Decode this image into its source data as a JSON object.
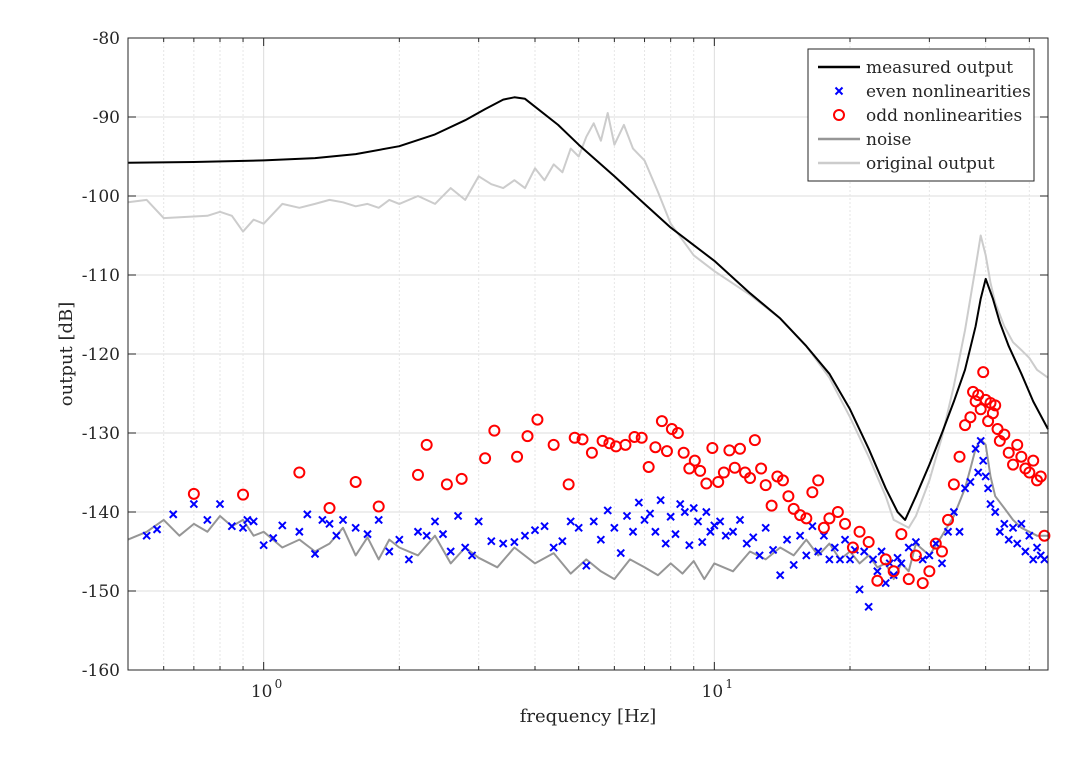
{
  "chart_data": {
    "type": "line",
    "title": "",
    "xlabel": "frequency [Hz]",
    "ylabel": "output [dB]",
    "xscale": "log",
    "xlim": [
      0.5,
      55
    ],
    "ylim": [
      -160,
      -80
    ],
    "yticks": [
      -80,
      -90,
      -100,
      -110,
      -120,
      -130,
      -140,
      -150,
      -160
    ],
    "yticklabels": [
      "-80",
      "-90",
      "-100",
      "-110",
      "-120",
      "-130",
      "-140",
      "-150",
      "-160"
    ],
    "xticks": [
      {
        "value": 1,
        "base": "10",
        "exp": "0"
      },
      {
        "value": 10,
        "base": "10",
        "exp": "1"
      }
    ],
    "grid": true,
    "minor_grid_x": true,
    "legend_location": "top-right",
    "colors": {
      "measured": "#000000",
      "even": "#0000ff",
      "odd": "#ff0000",
      "noise": "#969696",
      "original": "#cccccc"
    },
    "series": [
      {
        "name": "measured output",
        "style": "line",
        "x": [
          0.5,
          0.7,
          1.0,
          1.3,
          1.6,
          2.0,
          2.4,
          2.8,
          3.1,
          3.4,
          3.6,
          3.8,
          4.0,
          4.5,
          5.0,
          6.0,
          7.0,
          8.0,
          10.0,
          12.0,
          14.0,
          16.0,
          18.0,
          20.0,
          22.0,
          24.0,
          25.5,
          26.5,
          28.0,
          30.0,
          32.0,
          34.0,
          36.0,
          38.0,
          39.0,
          40.0,
          41.5,
          43.0,
          45.0,
          48.0,
          51.0,
          55.0
        ],
        "y": [
          -95.8,
          -95.7,
          -95.5,
          -95.2,
          -94.7,
          -93.7,
          -92.2,
          -90.4,
          -89.0,
          -87.8,
          -87.5,
          -87.7,
          -88.7,
          -91.0,
          -93.5,
          -97.5,
          -101.0,
          -104.0,
          -108.2,
          -112.3,
          -115.5,
          -119.0,
          -122.5,
          -127.0,
          -132.0,
          -137.0,
          -140.0,
          -141.0,
          -138.0,
          -134.0,
          -130.0,
          -126.0,
          -122.0,
          -116.5,
          -113.0,
          -110.5,
          -113.0,
          -116.0,
          -119.0,
          -122.5,
          -126.0,
          -129.5
        ]
      },
      {
        "name": "even nonlinearities",
        "style": "x-marker",
        "x": [
          0.55,
          0.58,
          0.63,
          0.7,
          0.75,
          0.8,
          0.85,
          0.9,
          0.92,
          0.95,
          1.0,
          1.05,
          1.1,
          1.2,
          1.25,
          1.3,
          1.35,
          1.4,
          1.45,
          1.5,
          1.6,
          1.7,
          1.8,
          1.9,
          2.0,
          2.1,
          2.2,
          2.3,
          2.4,
          2.5,
          2.6,
          2.7,
          2.8,
          2.9,
          3.0,
          3.2,
          3.4,
          3.6,
          3.8,
          4.0,
          4.2,
          4.4,
          4.6,
          4.8,
          5.0,
          5.2,
          5.4,
          5.6,
          5.8,
          6.0,
          6.2,
          6.4,
          6.6,
          6.8,
          7.0,
          7.2,
          7.4,
          7.6,
          7.8,
          8.0,
          8.2,
          8.4,
          8.6,
          8.8,
          9.0,
          9.2,
          9.4,
          9.6,
          9.8,
          10.0,
          10.3,
          10.6,
          11.0,
          11.4,
          11.8,
          12.2,
          12.6,
          13.0,
          13.5,
          14.0,
          14.5,
          15.0,
          15.5,
          16.0,
          16.5,
          17.0,
          17.5,
          18.0,
          18.5,
          19.0,
          19.5,
          20.0,
          20.5,
          21.0,
          21.5,
          22.0,
          22.5,
          23.0,
          23.5,
          24.0,
          24.5,
          25.0,
          25.5,
          26.0,
          27.0,
          28.0,
          29.0,
          30.0,
          31.0,
          32.0,
          33.0,
          34.0,
          35.0,
          36.0,
          37.0,
          38.0,
          38.5,
          39.0,
          39.5,
          40.0,
          40.5,
          41.0,
          42.0,
          43.0,
          44.0,
          45.0,
          46.0,
          47.0,
          48.0,
          49.0,
          50.0,
          51.0,
          52.0,
          53.0,
          54.0
        ],
        "y": [
          -143.0,
          -142.2,
          -140.3,
          -139.0,
          -141.0,
          -139.0,
          -141.8,
          -142.0,
          -141.0,
          -141.2,
          -144.2,
          -143.3,
          -141.7,
          -142.5,
          -140.3,
          -145.3,
          -141.0,
          -141.5,
          -143.0,
          -141.0,
          -142.0,
          -142.8,
          -141.0,
          -145.0,
          -143.5,
          -146.0,
          -142.5,
          -143.0,
          -141.2,
          -142.8,
          -145.0,
          -140.5,
          -144.5,
          -145.5,
          -141.2,
          -143.7,
          -144.0,
          -143.8,
          -143.0,
          -142.3,
          -141.8,
          -144.5,
          -143.7,
          -141.2,
          -142.0,
          -146.8,
          -141.2,
          -143.5,
          -139.8,
          -142.0,
          -145.2,
          -140.5,
          -142.5,
          -138.8,
          -141.0,
          -140.2,
          -142.5,
          -138.5,
          -144.0,
          -140.6,
          -142.8,
          -139.0,
          -140.0,
          -144.2,
          -139.5,
          -141.2,
          -143.8,
          -140.0,
          -142.5,
          -141.7,
          -141.2,
          -143.0,
          -142.5,
          -141.0,
          -144.0,
          -143.2,
          -145.5,
          -142.0,
          -144.8,
          -148.0,
          -143.5,
          -146.7,
          -143.0,
          -145.5,
          -141.8,
          -145.0,
          -143.0,
          -146.0,
          -144.5,
          -146.0,
          -143.5,
          -146.0,
          -144.8,
          -149.8,
          -145.0,
          -152.0,
          -146.0,
          -147.5,
          -145.0,
          -149.0,
          -146.5,
          -148.0,
          -145.8,
          -146.5,
          -144.5,
          -143.8,
          -146.0,
          -145.5,
          -144.0,
          -146.5,
          -142.5,
          -140.0,
          -142.5,
          -137.0,
          -136.2,
          -132.0,
          -135.0,
          -131.0,
          -133.5,
          -135.5,
          -137.0,
          -139.0,
          -140.0,
          -142.5,
          -141.5,
          -143.5,
          -142.0,
          -144.0,
          -141.5,
          -145.0,
          -143.0,
          -146.0,
          -144.5,
          -145.5,
          -146.0
        ]
      },
      {
        "name": "odd nonlinearities",
        "style": "o-marker",
        "x": [
          0.7,
          0.9,
          1.2,
          1.4,
          1.6,
          1.8,
          2.2,
          2.3,
          2.55,
          2.75,
          3.1,
          3.25,
          3.65,
          3.85,
          4.05,
          4.4,
          4.75,
          4.9,
          5.1,
          5.35,
          5.65,
          5.85,
          6.05,
          6.35,
          6.65,
          6.9,
          7.15,
          7.4,
          7.65,
          7.85,
          8.05,
          8.3,
          8.55,
          8.8,
          9.05,
          9.3,
          9.6,
          9.9,
          10.2,
          10.5,
          10.8,
          11.1,
          11.4,
          11.7,
          12.0,
          12.3,
          12.7,
          13.0,
          13.4,
          13.8,
          14.2,
          14.6,
          15.0,
          15.5,
          16.0,
          16.5,
          17.0,
          17.5,
          18.0,
          18.8,
          19.5,
          20.3,
          21.0,
          22.0,
          23.0,
          24.0,
          25.0,
          26.0,
          27.0,
          28.0,
          29.0,
          30.0,
          31.0,
          32.0,
          33.0,
          34.0,
          35.0,
          36.0,
          37.0,
          37.5,
          38.0,
          38.5,
          39.0,
          39.5,
          40.0,
          40.5,
          41.0,
          41.5,
          42.0,
          42.5,
          43.0,
          44.0,
          45.0,
          46.0,
          47.0,
          48.0,
          49.0,
          50.0,
          51.0,
          52.0,
          53.0,
          54.0
        ],
        "y": [
          -137.7,
          -137.8,
          -135.0,
          -139.5,
          -136.2,
          -139.3,
          -135.3,
          -131.5,
          -136.5,
          -135.8,
          -133.2,
          -129.7,
          -133.0,
          -130.4,
          -128.3,
          -131.5,
          -136.5,
          -130.6,
          -130.8,
          -132.5,
          -131.0,
          -131.3,
          -131.7,
          -131.5,
          -130.5,
          -130.6,
          -134.3,
          -131.8,
          -128.5,
          -132.3,
          -129.5,
          -130.0,
          -132.5,
          -134.5,
          -133.5,
          -134.8,
          -136.4,
          -131.9,
          -136.2,
          -135.0,
          -132.2,
          -134.4,
          -132.0,
          -135.0,
          -135.7,
          -130.9,
          -134.5,
          -136.6,
          -139.2,
          -135.5,
          -136.0,
          -138.0,
          -139.6,
          -140.4,
          -140.8,
          -137.5,
          -136.0,
          -142.0,
          -140.8,
          -140.0,
          -141.5,
          -144.5,
          -142.5,
          -143.8,
          -148.7,
          -146.0,
          -147.5,
          -142.8,
          -148.5,
          -145.5,
          -149.0,
          -147.5,
          -144.0,
          -145.0,
          -141.0,
          -136.5,
          -133.0,
          -129.0,
          -128.0,
          -124.8,
          -126.0,
          -125.2,
          -127.0,
          -122.3,
          -125.8,
          -128.5,
          -126.2,
          -127.5,
          -126.5,
          -129.5,
          -131.0,
          -130.2,
          -132.5,
          -134.0,
          -131.5,
          -133.0,
          -134.5,
          -135.0,
          -133.5,
          -136.0,
          -135.5,
          -143.0
        ]
      },
      {
        "name": "noise",
        "style": "line",
        "x": [
          0.5,
          0.55,
          0.6,
          0.65,
          0.7,
          0.75,
          0.8,
          0.85,
          0.9,
          0.95,
          1.0,
          1.1,
          1.2,
          1.3,
          1.4,
          1.5,
          1.6,
          1.7,
          1.8,
          1.9,
          2.0,
          2.2,
          2.4,
          2.6,
          2.8,
          3.0,
          3.3,
          3.6,
          4.0,
          4.4,
          4.8,
          5.2,
          5.6,
          6.0,
          6.5,
          7.0,
          7.5,
          8.0,
          8.5,
          9.0,
          9.5,
          10.0,
          11.0,
          12.0,
          13.0,
          14.0,
          15.0,
          16.0,
          17.0,
          18.0,
          19.0,
          20.0,
          21.0,
          22.0,
          23.0,
          24.0,
          25.0,
          26.0,
          27.0,
          28.0,
          30.0,
          32.0,
          34.0,
          36.0,
          37.0,
          38.0,
          39.0,
          40.0,
          41.0,
          42.0,
          44.0,
          46.0,
          48.0,
          50.0,
          52.0,
          55.0
        ],
        "y": [
          -143.5,
          -142.5,
          -141.0,
          -143.0,
          -141.5,
          -142.5,
          -140.5,
          -141.8,
          -141.0,
          -143.0,
          -142.5,
          -144.5,
          -143.5,
          -145.0,
          -144.0,
          -142.0,
          -145.5,
          -143.2,
          -146.0,
          -143.5,
          -144.5,
          -145.5,
          -143.0,
          -146.5,
          -144.5,
          -145.8,
          -147.0,
          -144.5,
          -146.5,
          -145.2,
          -147.8,
          -146.0,
          -147.5,
          -148.5,
          -146.0,
          -147.0,
          -148.0,
          -146.5,
          -147.8,
          -146.2,
          -148.5,
          -146.5,
          -147.5,
          -145.0,
          -146.0,
          -144.5,
          -145.5,
          -143.5,
          -145.5,
          -144.0,
          -146.0,
          -145.0,
          -146.5,
          -145.5,
          -147.0,
          -146.5,
          -148.5,
          -146.5,
          -147.5,
          -144.0,
          -145.5,
          -143.0,
          -140.5,
          -137.0,
          -134.5,
          -132.0,
          -130.8,
          -131.5,
          -135.5,
          -138.0,
          -139.5,
          -141.0,
          -142.0,
          -142.5,
          -143.0,
          -143.0
        ]
      },
      {
        "name": "original output",
        "style": "line",
        "x": [
          0.5,
          0.55,
          0.6,
          0.75,
          0.8,
          0.85,
          0.9,
          0.95,
          1.0,
          1.1,
          1.2,
          1.3,
          1.4,
          1.5,
          1.6,
          1.7,
          1.8,
          1.9,
          2.0,
          2.2,
          2.4,
          2.6,
          2.8,
          3.0,
          3.2,
          3.4,
          3.6,
          3.8,
          4.0,
          4.2,
          4.4,
          4.6,
          4.8,
          5.0,
          5.2,
          5.4,
          5.6,
          5.8,
          6.0,
          6.3,
          6.6,
          7.0,
          7.5,
          8.0,
          9.0,
          10.0,
          12.0,
          14.0,
          16.0,
          18.0,
          20.0,
          22.0,
          24.0,
          25.0,
          26.0,
          27.0,
          28.0,
          30.0,
          32.0,
          34.0,
          36.0,
          38.0,
          39.0,
          40.0,
          41.0,
          42.0,
          44.0,
          46.0,
          48.0,
          50.0,
          52.0,
          55.0
        ],
        "y": [
          -100.8,
          -100.5,
          -102.8,
          -102.5,
          -102.0,
          -102.5,
          -104.5,
          -103.0,
          -103.5,
          -101.0,
          -101.5,
          -101.0,
          -100.5,
          -100.8,
          -101.3,
          -101.0,
          -101.5,
          -100.5,
          -101.0,
          -100.0,
          -101.0,
          -99.0,
          -100.5,
          -97.5,
          -98.5,
          -99.0,
          -98.0,
          -99.0,
          -96.5,
          -98.0,
          -96.0,
          -97.0,
          -94.0,
          -95.0,
          -92.5,
          -90.8,
          -93.0,
          -89.5,
          -93.5,
          -91.0,
          -94.0,
          -95.5,
          -99.5,
          -103.5,
          -107.5,
          -109.5,
          -112.5,
          -115.5,
          -119.0,
          -123.0,
          -128.0,
          -133.0,
          -138.0,
          -141.0,
          -141.5,
          -142.0,
          -140.5,
          -136.0,
          -130.5,
          -124.0,
          -117.0,
          -109.0,
          -105.0,
          -107.5,
          -111.0,
          -113.5,
          -116.5,
          -118.5,
          -119.5,
          -120.5,
          -122.0,
          -123.0
        ]
      }
    ]
  }
}
